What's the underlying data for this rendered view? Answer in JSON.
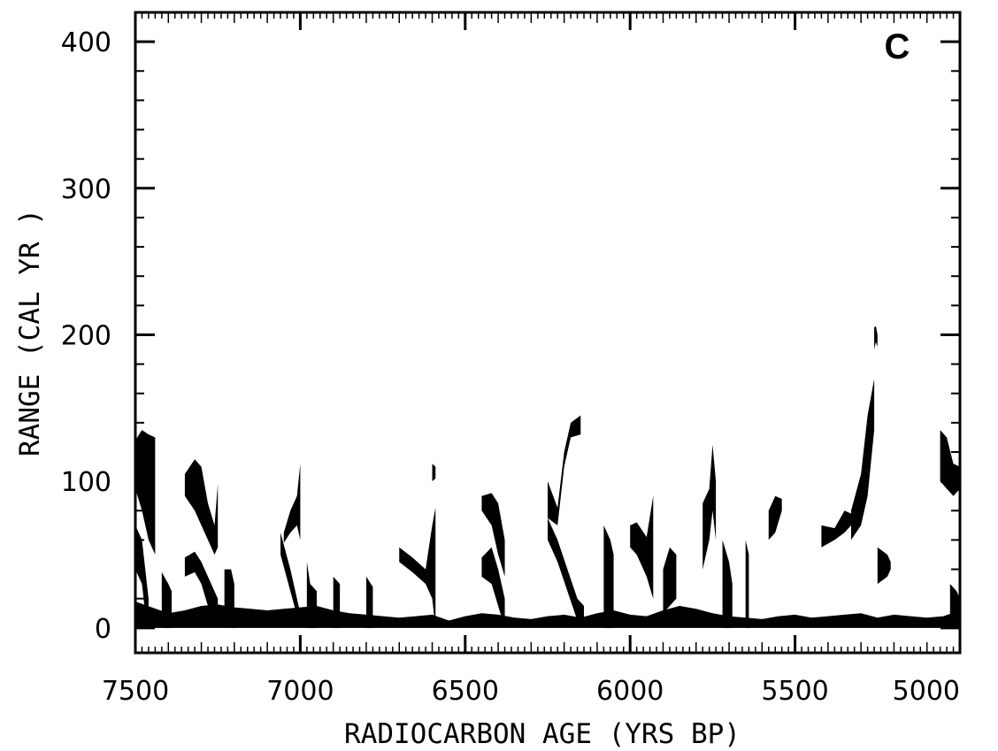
{
  "chart_data": {
    "type": "area",
    "panel_label": "C",
    "xlabel": "RADIOCARBON AGE (YRS BP)",
    "ylabel": "RANGE (CAL YR )",
    "xlim": [
      7500,
      5000
    ],
    "ylim": [
      -17,
      420
    ],
    "x_reversed": true,
    "x_ticks": [
      7500,
      7000,
      6500,
      6000,
      5500,
      5000
    ],
    "x_tick_labels": [
      "7500",
      "7000",
      "6500",
      "6000",
      "5500",
      "5000"
    ],
    "y_ticks": [
      0,
      100,
      200,
      300,
      400
    ],
    "y_tick_labels": [
      "0",
      "100",
      "200",
      "300",
      "400"
    ],
    "grid": false,
    "legend": "none",
    "fill_color": "#000000",
    "baseline": {
      "x": [
        7500,
        7450,
        7400,
        7350,
        7300,
        7250,
        7200,
        7150,
        7100,
        7050,
        7000,
        6950,
        6900,
        6850,
        6800,
        6750,
        6700,
        6650,
        6600,
        6550,
        6500,
        6450,
        6400,
        6350,
        6300,
        6250,
        6200,
        6150,
        6100,
        6050,
        6000,
        5950,
        5900,
        5850,
        5800,
        5750,
        5700,
        5650,
        5600,
        5550,
        5500,
        5450,
        5400,
        5350,
        5300,
        5250,
        5200,
        5150,
        5100,
        5050,
        5000
      ],
      "y": [
        18,
        14,
        10,
        12,
        15,
        16,
        14,
        13,
        12,
        13,
        14,
        15,
        12,
        10,
        9,
        8,
        7,
        8,
        9,
        5,
        8,
        10,
        9,
        7,
        6,
        8,
        9,
        7,
        10,
        12,
        9,
        8,
        12,
        15,
        13,
        10,
        8,
        7,
        6,
        8,
        9,
        7,
        8,
        9,
        10,
        7,
        9,
        8,
        7,
        8,
        12
      ]
    },
    "bands": [
      {
        "x": [
          7500,
          7480,
          7460,
          7440
        ],
        "lower": [
          95,
          80,
          60,
          50
        ],
        "upper": [
          128,
          135,
          132,
          130
        ]
      },
      {
        "x": [
          7500,
          7480,
          7470,
          7460
        ],
        "lower": [
          40,
          30,
          10,
          0
        ],
        "upper": [
          70,
          60,
          40,
          20
        ]
      },
      {
        "x": [
          7420,
          7400,
          7390
        ],
        "lower": [
          0,
          0,
          0
        ],
        "upper": [
          38,
          30,
          25
        ]
      },
      {
        "x": [
          7350,
          7320,
          7300,
          7280,
          7260,
          7250
        ],
        "lower": [
          90,
          80,
          70,
          60,
          50,
          55
        ],
        "upper": [
          105,
          115,
          110,
          85,
          70,
          98
        ]
      },
      {
        "x": [
          7350,
          7320,
          7300,
          7280,
          7250
        ],
        "lower": [
          35,
          38,
          30,
          15,
          0
        ],
        "upper": [
          48,
          52,
          45,
          35,
          20
        ]
      },
      {
        "x": [
          7230,
          7210,
          7200
        ],
        "lower": [
          10,
          0,
          0
        ],
        "upper": [
          40,
          40,
          30
        ]
      },
      {
        "x": [
          7050,
          7030,
          7010,
          7000
        ],
        "lower": [
          58,
          65,
          70,
          60
        ],
        "upper": [
          65,
          80,
          90,
          112
        ]
      },
      {
        "x": [
          7060,
          7030,
          7000
        ],
        "lower": [
          50,
          25,
          0
        ],
        "upper": [
          65,
          40,
          10
        ]
      },
      {
        "x": [
          6980,
          6970,
          6950
        ],
        "lower": [
          0,
          0,
          0
        ],
        "upper": [
          45,
          30,
          25
        ]
      },
      {
        "x": [
          6900,
          6880
        ],
        "lower": [
          0,
          0
        ],
        "upper": [
          35,
          30
        ]
      },
      {
        "x": [
          6800,
          6780
        ],
        "lower": [
          0,
          0
        ],
        "upper": [
          35,
          28
        ]
      },
      {
        "x": [
          6700,
          6660,
          6620,
          6600,
          6590
        ],
        "lower": [
          45,
          38,
          30,
          20,
          0
        ],
        "upper": [
          55,
          48,
          40,
          70,
          82
        ]
      },
      {
        "x": [
          6600,
          6590
        ],
        "lower": [
          100,
          102
        ],
        "upper": [
          112,
          110
        ]
      },
      {
        "x": [
          6450,
          6420,
          6400,
          6380
        ],
        "lower": [
          80,
          70,
          50,
          35
        ],
        "upper": [
          90,
          92,
          85,
          60
        ]
      },
      {
        "x": [
          6450,
          6420,
          6400,
          6380
        ],
        "lower": [
          35,
          30,
          15,
          0
        ],
        "upper": [
          48,
          55,
          40,
          20
        ]
      },
      {
        "x": [
          6250,
          6220,
          6200,
          6180,
          6150
        ],
        "lower": [
          75,
          70,
          110,
          130,
          132
        ],
        "upper": [
          100,
          82,
          120,
          140,
          145
        ]
      },
      {
        "x": [
          6250,
          6220,
          6190,
          6160,
          6140
        ],
        "lower": [
          60,
          45,
          25,
          5,
          0
        ],
        "upper": [
          75,
          60,
          40,
          20,
          15
        ]
      },
      {
        "x": [
          6080,
          6060,
          6050
        ],
        "lower": [
          0,
          0,
          0
        ],
        "upper": [
          70,
          60,
          50
        ]
      },
      {
        "x": [
          6000,
          5980,
          5950,
          5930
        ],
        "lower": [
          55,
          50,
          35,
          20
        ],
        "upper": [
          70,
          72,
          62,
          90
        ]
      },
      {
        "x": [
          5900,
          5880,
          5860
        ],
        "lower": [
          10,
          15,
          20
        ],
        "upper": [
          40,
          55,
          50
        ]
      },
      {
        "x": [
          5780,
          5760,
          5750,
          5740
        ],
        "lower": [
          40,
          60,
          80,
          60
        ],
        "upper": [
          85,
          95,
          125,
          100
        ]
      },
      {
        "x": [
          5720,
          5700,
          5690
        ],
        "lower": [
          0,
          0,
          0
        ],
        "upper": [
          60,
          45,
          30
        ]
      },
      {
        "x": [
          5650,
          5640
        ],
        "lower": [
          0,
          0
        ],
        "upper": [
          60,
          50
        ]
      },
      {
        "x": [
          5580,
          5560,
          5540
        ],
        "lower": [
          60,
          65,
          80
        ],
        "upper": [
          80,
          90,
          88
        ]
      },
      {
        "x": [
          5420,
          5380,
          5350,
          5330
        ],
        "lower": [
          55,
          60,
          65,
          70
        ],
        "upper": [
          70,
          68,
          80,
          78
        ]
      },
      {
        "x": [
          5330,
          5300,
          5280,
          5260
        ],
        "lower": [
          60,
          70,
          90,
          135
        ],
        "upper": [
          80,
          105,
          145,
          170
        ]
      },
      {
        "x": [
          5260,
          5255,
          5250
        ],
        "lower": [
          190,
          195,
          192
        ],
        "upper": [
          205,
          206,
          200
        ]
      },
      {
        "x": [
          5250,
          5220,
          5210
        ],
        "lower": [
          30,
          35,
          40
        ],
        "upper": [
          55,
          50,
          45
        ]
      },
      {
        "x": [
          5060,
          5040,
          5020,
          5000
        ],
        "lower": [
          100,
          95,
          90,
          95
        ],
        "upper": [
          135,
          130,
          112,
          110
        ]
      },
      {
        "x": [
          5030,
          5010,
          5000
        ],
        "lower": [
          0,
          0,
          0
        ],
        "upper": [
          30,
          25,
          20
        ]
      }
    ]
  }
}
